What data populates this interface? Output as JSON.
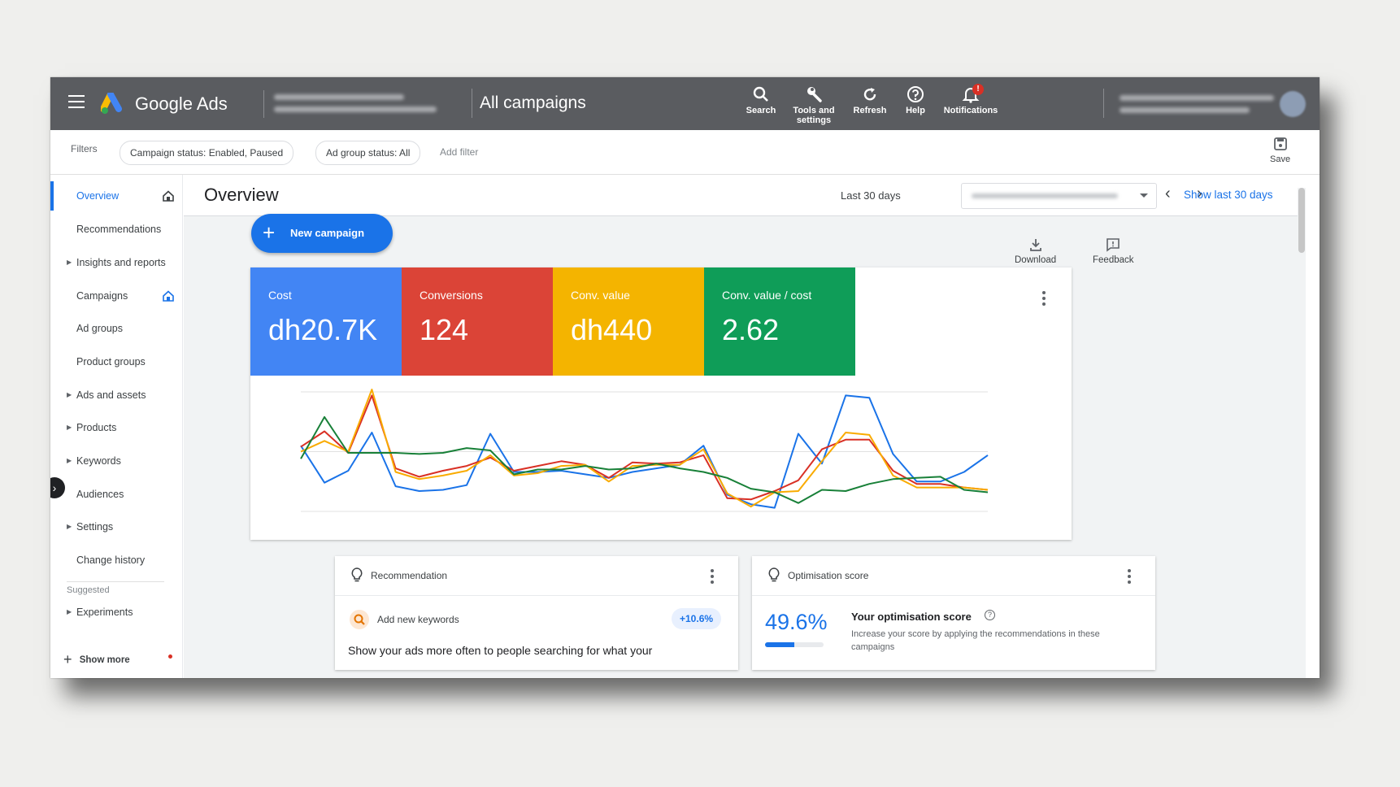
{
  "app": {
    "brand": "Google Ads",
    "breadcrumb": "All campaigns"
  },
  "toolbar": [
    {
      "label": "Search",
      "icon": "search-icon"
    },
    {
      "label": "Tools and settings",
      "icon": "wrench-icon"
    },
    {
      "label": "Refresh",
      "icon": "refresh-icon"
    },
    {
      "label": "Help",
      "icon": "help-icon"
    },
    {
      "label": "Notifications",
      "icon": "bell-icon",
      "badge": "!"
    }
  ],
  "filters": {
    "label": "Filters",
    "chips": [
      "Campaign status: Enabled, Paused",
      "Ad group status: All"
    ],
    "add": "Add filter",
    "save": "Save"
  },
  "sidebar": {
    "items": [
      {
        "label": "Overview",
        "expandable": false,
        "active": true
      },
      {
        "label": "Recommendations",
        "expandable": false
      },
      {
        "label": "Insights and reports",
        "expandable": true
      },
      {
        "label": "Campaigns",
        "expandable": false
      },
      {
        "label": "Ad groups",
        "expandable": false
      },
      {
        "label": "Product groups",
        "expandable": false
      },
      {
        "label": "Ads and assets",
        "expandable": true
      },
      {
        "label": "Products",
        "expandable": true
      },
      {
        "label": "Keywords",
        "expandable": true
      },
      {
        "label": "Audiences",
        "expandable": false
      },
      {
        "label": "Settings",
        "expandable": true
      },
      {
        "label": "Change history",
        "expandable": false
      }
    ],
    "suggested_label": "Suggested",
    "suggested_items": [
      {
        "label": "Experiments",
        "expandable": true
      }
    ],
    "show_more": "Show more"
  },
  "main": {
    "title": "Overview",
    "date_label": "Last 30 days",
    "show_last": "Show last 30 days",
    "new_campaign": "New campaign",
    "download": "Download",
    "feedback": "Feedback"
  },
  "kpis": [
    {
      "label": "Cost",
      "value": "dh20.7K",
      "color": "#4285f4"
    },
    {
      "label": "Conversions",
      "value": "124",
      "color": "#db4437"
    },
    {
      "label": "Conv. value",
      "value": "dh440",
      "color": "#f4b400"
    },
    {
      "label": "Conv. value / cost",
      "value": "2.62",
      "color": "#0f9d58"
    }
  ],
  "chart_data": {
    "type": "line",
    "title": "",
    "xlabel": "",
    "ylabel": "",
    "grid": true,
    "ylim": [
      0,
      100
    ],
    "x": [
      1,
      2,
      3,
      4,
      5,
      6,
      7,
      8,
      9,
      10,
      11,
      12,
      13,
      14,
      15,
      16,
      17,
      18,
      19,
      20,
      21,
      22,
      23,
      24,
      25,
      26,
      27,
      28,
      29,
      30
    ],
    "series": [
      {
        "color": "#1a73e8",
        "values": [
          55,
          24,
          34,
          66,
          21,
          17,
          18,
          22,
          65,
          33,
          33,
          34,
          31,
          28,
          33,
          36,
          39,
          55,
          14,
          6,
          3,
          65,
          40,
          97,
          95,
          48,
          25,
          25,
          33,
          47
        ]
      },
      {
        "color": "#d93025",
        "values": [
          54,
          67,
          49,
          97,
          36,
          29,
          34,
          38,
          45,
          34,
          38,
          42,
          39,
          28,
          41,
          40,
          41,
          47,
          11,
          10,
          17,
          26,
          52,
          60,
          60,
          34,
          23,
          23,
          20,
          18
        ]
      },
      {
        "color": "#f9ab00",
        "values": [
          50,
          59,
          50,
          102,
          33,
          27,
          30,
          34,
          47,
          30,
          32,
          38,
          39,
          25,
          38,
          39,
          39,
          52,
          15,
          4,
          16,
          17,
          42,
          66,
          64,
          30,
          20,
          20,
          20,
          18
        ]
      },
      {
        "color": "#188038",
        "values": [
          44,
          79,
          49,
          49,
          49,
          48,
          49,
          53,
          51,
          31,
          35,
          35,
          38,
          35,
          36,
          40,
          36,
          33,
          28,
          19,
          16,
          7,
          18,
          17,
          23,
          27,
          28,
          29,
          18,
          16
        ]
      }
    ]
  },
  "recommendation": {
    "title": "Recommendation",
    "item": "Add new keywords",
    "badge": "+10.6%",
    "desc": "Show your ads more often to people searching for what your"
  },
  "optimisation": {
    "title": "Optimisation score",
    "score": "49.6%",
    "score_fraction": 0.496,
    "heading": "Your optimisation score",
    "desc": "Increase your score by applying the recommendations in these campaigns"
  }
}
